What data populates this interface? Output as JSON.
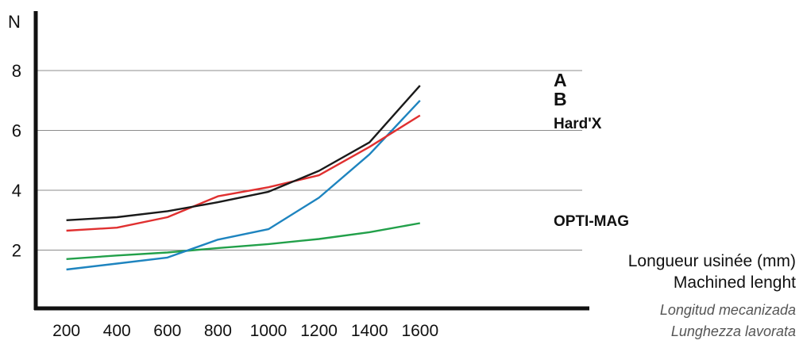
{
  "chart_data": {
    "type": "line",
    "ylabel": "N",
    "xlabel_lines": [
      "Longueur usinée (mm)",
      "Machined lenght",
      "Longitud mecanizada",
      "Lunghezza lavorata"
    ],
    "x": [
      200,
      400,
      600,
      800,
      1000,
      1200,
      1400,
      1600
    ],
    "y_ticks": [
      2,
      4,
      6,
      8
    ],
    "ylim": [
      0,
      10
    ],
    "xlim": [
      0,
      1800
    ],
    "grid": "horizontal",
    "series": [
      {
        "name": "A",
        "color": "#1a1a1a",
        "values": [
          3.0,
          3.1,
          3.3,
          3.6,
          3.95,
          4.65,
          5.6,
          7.5
        ]
      },
      {
        "name": "B",
        "color": "#1e84bf",
        "values": [
          1.35,
          1.55,
          1.75,
          2.35,
          2.7,
          3.75,
          5.2,
          7.0
        ]
      },
      {
        "name": "Hard'X",
        "color": "#e03030",
        "values": [
          2.65,
          2.75,
          3.1,
          3.8,
          4.1,
          4.5,
          5.45,
          6.5
        ]
      },
      {
        "name": "OPTI-MAG",
        "color": "#22a04a",
        "values": [
          1.7,
          1.82,
          1.92,
          2.07,
          2.2,
          2.37,
          2.6,
          2.9
        ]
      }
    ]
  }
}
